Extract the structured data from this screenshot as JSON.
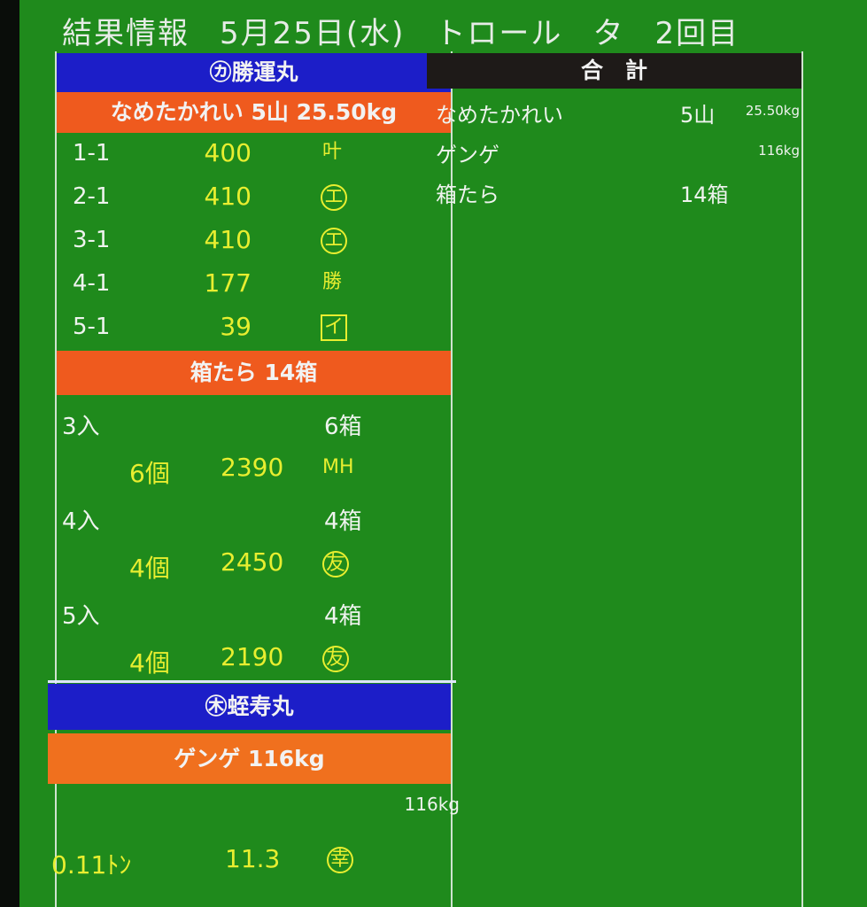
{
  "title": {
    "label": "結果情報",
    "date": "5月25日(水)",
    "method": "トロール",
    "session": "タ",
    "round": "2回目"
  },
  "left": {
    "vessel1": {
      "name": "㋕勝運丸",
      "item1": {
        "header": "なめたかれい 5山 25.50kg",
        "rows": [
          {
            "lot": "1-1",
            "price": "400",
            "buyer_mark": "叶"
          },
          {
            "lot": "2-1",
            "price": "410",
            "buyer_mark": "エ"
          },
          {
            "lot": "3-1",
            "price": "410",
            "buyer_mark": "エ"
          },
          {
            "lot": "4-1",
            "price": "177",
            "buyer_mark": "勝"
          },
          {
            "lot": "5-1",
            "price": "39",
            "buyer_mark": "イ"
          }
        ]
      },
      "item2": {
        "header": "箱たら 14箱",
        "groups": [
          {
            "size": "3入",
            "boxes": "6箱",
            "count": "6個",
            "price": "2390",
            "buyer_mark": "MH"
          },
          {
            "size": "4入",
            "boxes": "4箱",
            "count": "4個",
            "price": "2450",
            "buyer_mark": "友"
          },
          {
            "size": "5入",
            "boxes": "4箱",
            "count": "4個",
            "price": "2190",
            "buyer_mark": "友"
          }
        ]
      }
    },
    "vessel2": {
      "name": "㊍蛭寿丸",
      "item1": {
        "header": "ゲンゲ 116kg",
        "weight": "116kg",
        "tons": "0.11ﾄﾝ",
        "price": "11.3",
        "buyer_mark": "幸"
      }
    }
  },
  "right": {
    "header": "合　計",
    "rows": [
      {
        "name": "なめたかれい",
        "qty": "5山",
        "weight": "25.50kg"
      },
      {
        "name": "ゲンゲ",
        "qty": "",
        "weight": "116kg"
      },
      {
        "name": "箱たら",
        "qty": "14箱",
        "weight": ""
      }
    ]
  },
  "colors": {
    "screen": "#1f8a1c",
    "vessel_bar": "#1c1ec8",
    "item_bar": "#ef5a1e",
    "price": "#e8ee30"
  }
}
